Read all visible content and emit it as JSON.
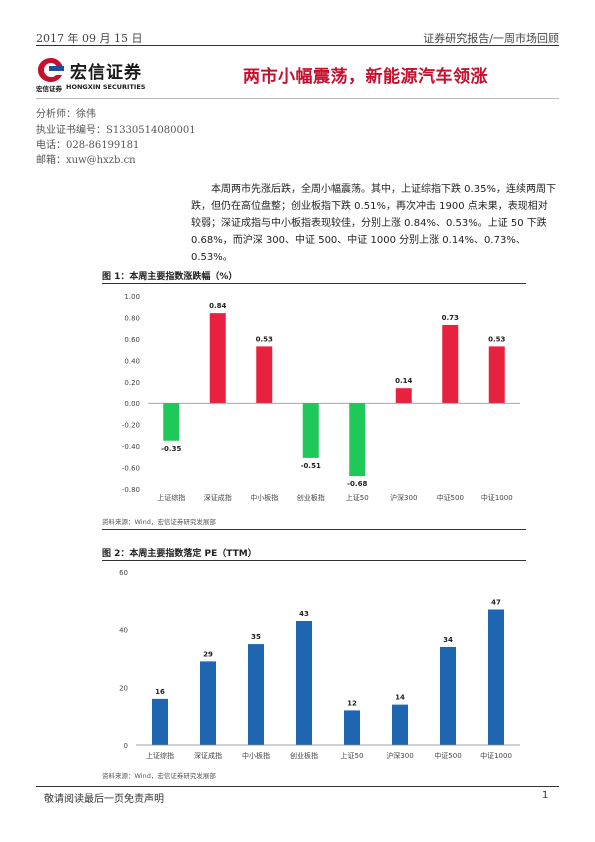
{
  "header": {
    "date": "2017 年 09 月 15 日",
    "report_type": "证券研究报告/一周市场回顾"
  },
  "logo": {
    "name_cn": "宏信证券",
    "name_en_cn": "宏信证券",
    "name_en": "HONGXIN SECURITIES"
  },
  "report_title": "两市小幅震荡，新能源汽车领涨",
  "analyst": {
    "name": "分析师：徐伟",
    "license": "执业证书编号：S1330514080001",
    "phone": "电话：028-86199181",
    "email": "邮箱：xuw@hxzb.cn"
  },
  "summary": "本周两市先涨后跌，全周小幅震荡。其中，上证综指下跌 0.35%，连续两周下跌，但仍在高位盘整；创业板指下跌 0.51%，再次冲击 1900 点未果，表现相对较弱；深证成指与中小板指表现较佳，分别上涨 0.84%、0.53%。上证 50 下跌 0.68%，而沪深 300、中证 500、中证 1000 分别上涨 0.14%、0.73%、0.53%。",
  "colors": {
    "up": "#e8213f",
    "down": "#1ec95a",
    "bar": "#1f66b0",
    "title": "#c8102e"
  },
  "figure1": {
    "title": "图 1：本周主要指数涨跌幅（%）",
    "source": "资料来源：Wind，宏信证券研究发展部"
  },
  "figure2": {
    "title": "图 2：本周主要指数落定 PE（TTM）",
    "source": "资料来源：Wind，宏信证券研究发展部"
  },
  "chart_data": [
    {
      "type": "bar",
      "title": "图 1：本周主要指数涨跌幅（%）",
      "categories": [
        "上证综指",
        "深证成指",
        "中小板指",
        "创业板指",
        "上证50",
        "沪深300",
        "中证500",
        "中证1000"
      ],
      "values": [
        -0.35,
        0.84,
        0.53,
        -0.51,
        -0.68,
        0.14,
        0.73,
        0.53
      ],
      "value_labels": [
        "-0.35",
        "0.84",
        "0.53",
        "-0.51",
        "-0.68",
        "0.14",
        "0.73",
        "0.53"
      ],
      "ylim": [
        -0.8,
        1.0
      ],
      "yticks": [
        "1.00",
        "0.80",
        "0.60",
        "0.40",
        "0.20",
        "0.00",
        "-0.20",
        "-0.40",
        "-0.60",
        "-0.80"
      ],
      "ytick_values": [
        1.0,
        0.8,
        0.6,
        0.4,
        0.2,
        0.0,
        -0.2,
        -0.4,
        -0.6,
        -0.8
      ],
      "grid": false
    },
    {
      "type": "bar",
      "title": "图 2：本周主要指数落定 PE（TTM）",
      "categories": [
        "上证综指",
        "深证成指",
        "中小板指",
        "创业板指",
        "上证50",
        "沪深300",
        "中证500",
        "中证1000"
      ],
      "values": [
        16,
        29,
        35,
        43,
        12,
        14,
        34,
        47
      ],
      "value_labels": [
        "16",
        "29",
        "35",
        "43",
        "12",
        "14",
        "34",
        "47"
      ],
      "ylim": [
        0,
        60
      ],
      "yticks": [
        "60",
        "40",
        "20",
        "0"
      ],
      "ytick_values": [
        60,
        40,
        20,
        0
      ],
      "grid": false
    }
  ],
  "footer": {
    "disclaimer": "敬请阅读最后一页免责声明",
    "page": "1"
  }
}
